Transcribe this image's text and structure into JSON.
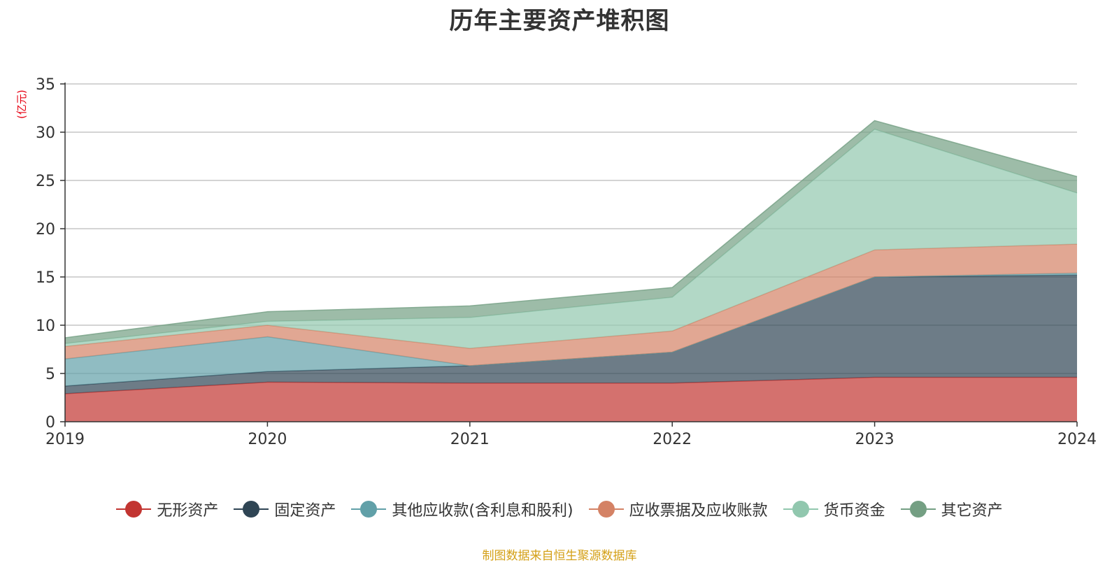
{
  "title": "历年主要资产堆积图",
  "unit_label": "(亿元)",
  "source": "制图数据来自恒生聚源数据库",
  "chart_data": {
    "type": "area",
    "stacked": true,
    "title": "历年主要资产堆积图",
    "ylabel": "(亿元)",
    "x": [
      "2019",
      "2020",
      "2021",
      "2022",
      "2023",
      "2024"
    ],
    "ylim": [
      0,
      35
    ],
    "yticks": [
      0,
      5,
      10,
      15,
      20,
      25,
      30,
      35
    ],
    "grid": true,
    "legend_position": "bottom",
    "series": [
      {
        "name": "无形资产",
        "color": "#c23531",
        "values": [
          2.9,
          4.1,
          4.0,
          4.0,
          4.6,
          4.6
        ]
      },
      {
        "name": "固定资产",
        "color": "#2f4554",
        "values": [
          0.8,
          1.1,
          1.8,
          3.2,
          10.4,
          10.6
        ]
      },
      {
        "name": "其他应收款(含利息和股利)",
        "color": "#61a0a8",
        "values": [
          2.8,
          3.6,
          0.0,
          0.0,
          0.0,
          0.2
        ]
      },
      {
        "name": "应收票据及应收账款",
        "color": "#d48265",
        "values": [
          1.3,
          1.2,
          1.8,
          2.2,
          2.8,
          3.0
        ]
      },
      {
        "name": "货币资金",
        "color": "#91c7ae",
        "values": [
          0.3,
          0.4,
          3.2,
          3.5,
          12.5,
          5.3
        ]
      },
      {
        "name": "其它资产",
        "color": "#749f83",
        "values": [
          0.6,
          1.0,
          1.2,
          1.0,
          0.9,
          1.7
        ]
      }
    ]
  }
}
